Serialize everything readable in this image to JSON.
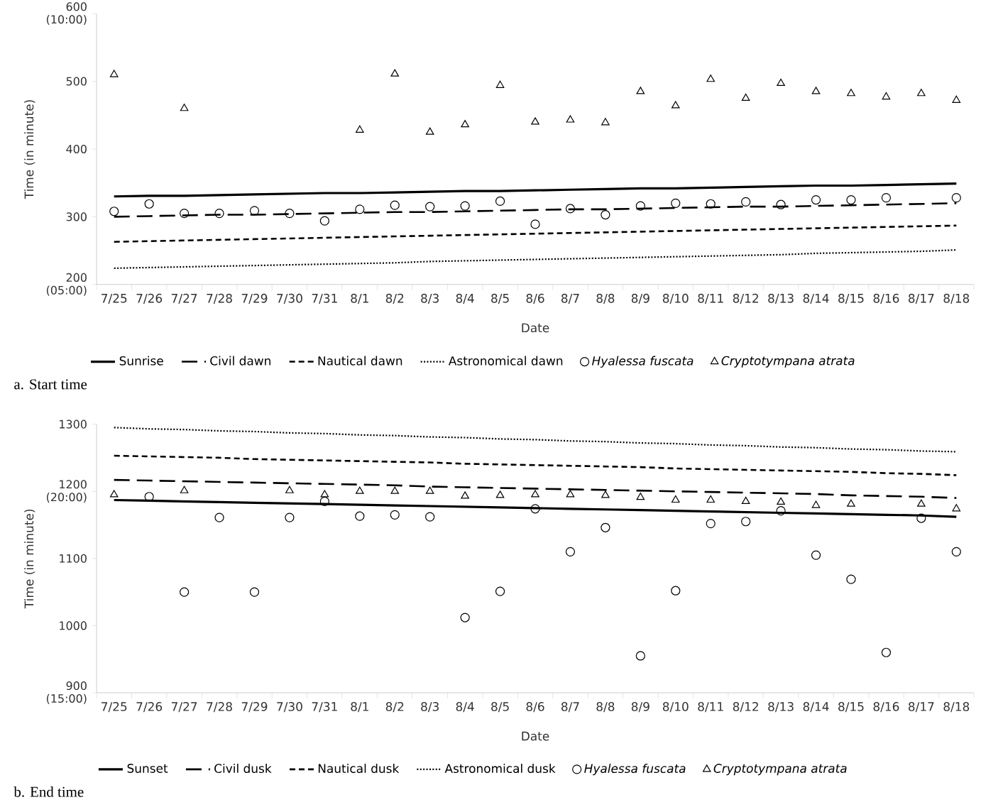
{
  "chart_data": [
    {
      "type": "line",
      "title": "a.  Start  time",
      "xlabel": "Date",
      "ylabel": "Time (in minute)",
      "legend": "bottom",
      "categories": [
        "7/25",
        "7/26",
        "7/27",
        "7/28",
        "7/29",
        "7/30",
        "7/31",
        "8/1",
        "8/2",
        "8/3",
        "8/4",
        "8/5",
        "8/6",
        "8/7",
        "8/8",
        "8/9",
        "8/10",
        "8/11",
        "8/12",
        "8/13",
        "8/14",
        "8/15",
        "8/16",
        "8/17",
        "8/18"
      ],
      "ylim": [
        200,
        600
      ],
      "yticks": [
        {
          "value": 200,
          "label": "200 (05:00)"
        },
        300,
        400,
        500,
        {
          "value": 600,
          "label": "600 (10:00)"
        }
      ],
      "series": [
        {
          "name": "Sunrise",
          "color": "#000000",
          "line_style": "solid",
          "values": [
            330,
            331,
            331,
            332,
            333,
            334,
            335,
            335,
            336,
            337,
            338,
            338,
            339,
            340,
            341,
            342,
            342,
            343,
            344,
            345,
            346,
            346,
            347,
            348,
            349
          ]
        },
        {
          "name": "Civil dawn",
          "color": "#000000",
          "line_style": "dashed",
          "values": [
            300,
            301,
            302,
            303,
            303,
            304,
            305,
            306,
            307,
            307,
            308,
            309,
            310,
            311,
            311,
            312,
            313,
            314,
            315,
            315,
            316,
            317,
            318,
            319,
            320
          ]
        },
        {
          "name": "Nautical dawn",
          "color": "#000000",
          "line_style": "dashed",
          "values": [
            263,
            264,
            265,
            266,
            267,
            268,
            269,
            270,
            271,
            272,
            273,
            274,
            275,
            276,
            277,
            278,
            279,
            280,
            281,
            282,
            283,
            284,
            285,
            286,
            287
          ]
        },
        {
          "name": "Astronomical dawn",
          "color": "#000000",
          "line_style": "dotted",
          "values": [
            224,
            225,
            226,
            227,
            228,
            229,
            230,
            231,
            232,
            234,
            235,
            236,
            237,
            238,
            239,
            240,
            241,
            242,
            243,
            244,
            246,
            247,
            248,
            249,
            251
          ]
        },
        {
          "name": "Hyalessa fuscata",
          "type": "scatter",
          "color": "#000000",
          "marker": "circle",
          "values": [
            308,
            319,
            305,
            305,
            309,
            305,
            294,
            311,
            317,
            315,
            316,
            323,
            289,
            312,
            303,
            316,
            320,
            319,
            322,
            318,
            325,
            325,
            328,
            null,
            328
          ]
        },
        {
          "name": "Cryptotympana atrata",
          "type": "scatter",
          "color": "#000000",
          "marker": "triangle",
          "values": [
            510,
            null,
            460,
            null,
            null,
            null,
            null,
            428,
            511,
            425,
            436,
            494,
            440,
            443,
            439,
            485,
            464,
            503,
            475,
            497,
            485,
            482,
            477,
            482,
            472
          ]
        }
      ]
    },
    {
      "type": "line",
      "title": "b.  End  time",
      "xlabel": "Date",
      "ylabel": "Time (in minute)",
      "legend": "bottom",
      "categories": [
        "7/25",
        "7/26",
        "7/27",
        "7/28",
        "7/29",
        "7/30",
        "7/31",
        "8/1",
        "8/2",
        "8/3",
        "8/4",
        "8/5",
        "8/6",
        "8/7",
        "8/8",
        "8/9",
        "8/10",
        "8/11",
        "8/12",
        "8/13",
        "8/14",
        "8/15",
        "8/16",
        "8/17",
        "8/18"
      ],
      "ylim": [
        900,
        1300
      ],
      "yticks": [
        {
          "value": 900,
          "label": "900 (15:00)"
        },
        1000,
        1100,
        {
          "value": 1200,
          "label": "1200 (20:00)"
        },
        1300
      ],
      "series": [
        {
          "name": "Sunset",
          "color": "#000000",
          "line_style": "solid",
          "values": [
            1187,
            1186,
            1185,
            1184,
            1183,
            1182,
            1181,
            1180,
            1179,
            1178,
            1177,
            1176,
            1175,
            1174,
            1173,
            1172,
            1171,
            1170,
            1169,
            1168,
            1167,
            1166,
            1165,
            1164,
            1162
          ]
        },
        {
          "name": "Civil dusk",
          "color": "#000000",
          "line_style": "dashed",
          "values": [
            1217,
            1216,
            1215,
            1214,
            1213,
            1212,
            1211,
            1210,
            1209,
            1207,
            1206,
            1205,
            1204,
            1203,
            1202,
            1201,
            1200,
            1199,
            1198,
            1197,
            1196,
            1194,
            1193,
            1192,
            1190
          ]
        },
        {
          "name": "Nautical dusk",
          "color": "#000000",
          "line_style": "dashed",
          "values": [
            1253,
            1252,
            1251,
            1250,
            1248,
            1247,
            1246,
            1245,
            1244,
            1243,
            1241,
            1240,
            1239,
            1238,
            1237,
            1236,
            1234,
            1233,
            1232,
            1231,
            1230,
            1229,
            1227,
            1226,
            1224
          ]
        },
        {
          "name": "Astronomical dusk",
          "color": "#000000",
          "line_style": "dotted",
          "values": [
            1295,
            1293,
            1292,
            1290,
            1289,
            1287,
            1286,
            1284,
            1283,
            1281,
            1280,
            1278,
            1277,
            1275,
            1274,
            1272,
            1271,
            1269,
            1268,
            1266,
            1265,
            1263,
            1262,
            1260,
            1259
          ]
        },
        {
          "name": "Hyalessa fuscata",
          "type": "scatter",
          "color": "#000000",
          "marker": "circle",
          "values": [
            null,
            1192,
            1050,
            1161,
            1050,
            1161,
            1185,
            1163,
            1165,
            1162,
            1012,
            1051,
            1174,
            1110,
            1146,
            955,
            1052,
            1152,
            1155,
            1171,
            1105,
            1069,
            960,
            1160,
            1110
          ]
        },
        {
          "name": "Cryptotympana atrata",
          "type": "scatter",
          "color": "#000000",
          "marker": "triangle",
          "values": [
            1195,
            null,
            1201,
            null,
            null,
            1201,
            1195,
            1200,
            1200,
            1200,
            1193,
            1194,
            1195,
            1195,
            1194,
            1191,
            1187,
            1187,
            1185,
            1184,
            1179,
            1181,
            null,
            1181,
            1174
          ]
        }
      ]
    }
  ]
}
